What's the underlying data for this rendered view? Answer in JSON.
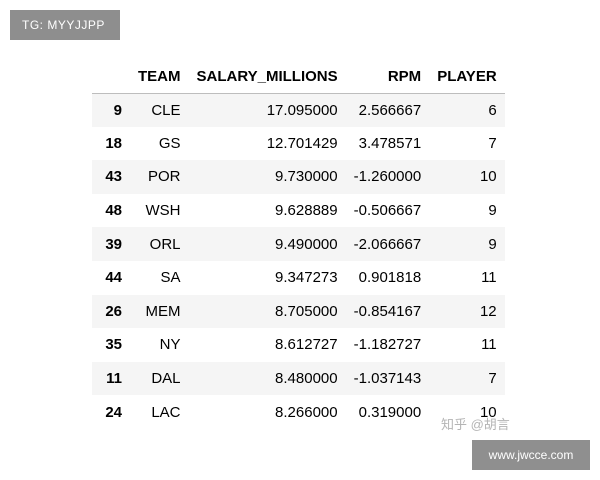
{
  "badge": "TG: MYYJJPP",
  "table": {
    "columns": [
      "",
      "TEAM",
      "SALARY_MILLIONS",
      "RPM",
      "PLAYER"
    ],
    "rows": [
      {
        "index": "9",
        "team": "CLE",
        "salary": "17.095000",
        "rpm": "2.566667",
        "player": "6"
      },
      {
        "index": "18",
        "team": "GS",
        "salary": "12.701429",
        "rpm": "3.478571",
        "player": "7"
      },
      {
        "index": "43",
        "team": "POR",
        "salary": "9.730000",
        "rpm": "-1.260000",
        "player": "10"
      },
      {
        "index": "48",
        "team": "WSH",
        "salary": "9.628889",
        "rpm": "-0.506667",
        "player": "9"
      },
      {
        "index": "39",
        "team": "ORL",
        "salary": "9.490000",
        "rpm": "-2.066667",
        "player": "9"
      },
      {
        "index": "44",
        "team": "SA",
        "salary": "9.347273",
        "rpm": "0.901818",
        "player": "11"
      },
      {
        "index": "26",
        "team": "MEM",
        "salary": "8.705000",
        "rpm": "-0.854167",
        "player": "12"
      },
      {
        "index": "35",
        "team": "NY",
        "salary": "8.612727",
        "rpm": "-1.182727",
        "player": "11"
      },
      {
        "index": "11",
        "team": "DAL",
        "salary": "8.480000",
        "rpm": "-1.037143",
        "player": "7"
      },
      {
        "index": "24",
        "team": "LAC",
        "salary": "8.266000",
        "rpm": "0.319000",
        "player": "10"
      }
    ]
  },
  "watermarks": {
    "zhihu": "知乎 @胡言",
    "site": "www.jwcce.com"
  }
}
